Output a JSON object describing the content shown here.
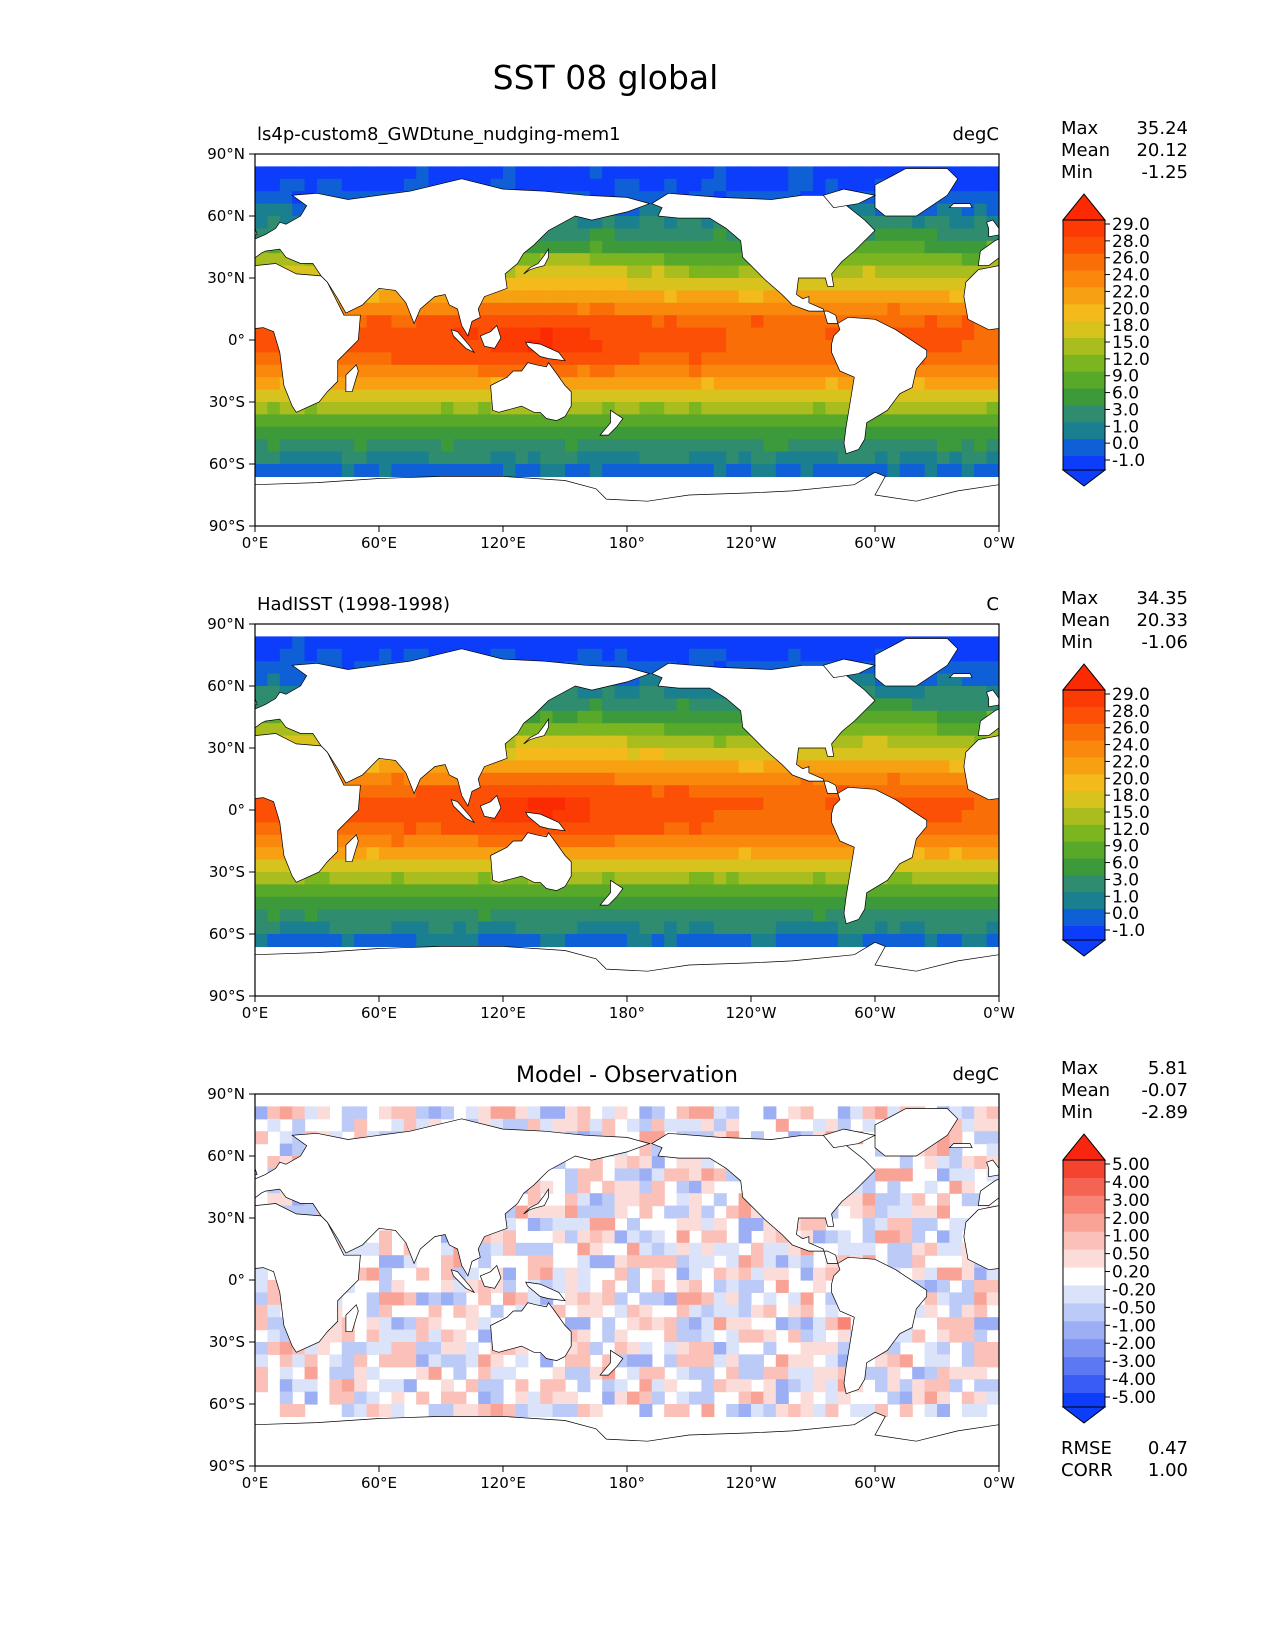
{
  "figure_title": "SST 08 global",
  "colors": {
    "land": "#ffffff",
    "coast": "#000000",
    "sst_scale": [
      "#0b3dfb",
      "#0f5fd6",
      "#1a7f8f",
      "#2f8c6e",
      "#3c9a3a",
      "#58a82a",
      "#7bb51f",
      "#a9bd1e",
      "#d8c21e",
      "#f4b91a",
      "#f7a012",
      "#f9880c",
      "#fa6e08",
      "#fb5006",
      "#fb3a04",
      "#fc2a02"
    ],
    "diff_scale": [
      "#0b3dfb",
      "#3a5cf6",
      "#5c78f3",
      "#7d94f2",
      "#9daff4",
      "#bccaf7",
      "#dae3fa",
      "#ffffff",
      "#ffffff",
      "#fcdcd8",
      "#fbc1b8",
      "#f9a396",
      "#f78474",
      "#f56352",
      "#f4432f",
      "#f8260f"
    ]
  },
  "chart_data": [
    {
      "type": "heatmap",
      "title": "ls4p-custom8_GWDtune_nudging-mem1",
      "units": "degC",
      "stats": [
        {
          "label": "Max",
          "value": "35.24"
        },
        {
          "label": "Mean",
          "value": "20.12"
        },
        {
          "label": "Min",
          "value": "-1.25"
        }
      ],
      "colorbar_ticks": [
        "29.0",
        "28.0",
        "26.0",
        "24.0",
        "22.0",
        "20.0",
        "18.0",
        "15.0",
        "12.0",
        "9.0",
        "6.0",
        "3.0",
        "1.0",
        "0.0",
        "-1.0"
      ],
      "xticks": [
        "0°E",
        "60°E",
        "120°E",
        "180°",
        "120°W",
        "60°W",
        "0°W"
      ],
      "yticks": [
        "90°N",
        "60°N",
        "30°N",
        "0°",
        "30°S",
        "60°S",
        "90°S"
      ],
      "xlim": [
        0,
        360
      ],
      "ylim": [
        -90,
        90
      ],
      "field": "sst_model"
    },
    {
      "type": "heatmap",
      "title": "HadISST (1998-1998)",
      "units": "C",
      "stats": [
        {
          "label": "Max",
          "value": "34.35"
        },
        {
          "label": "Mean",
          "value": "20.33"
        },
        {
          "label": "Min",
          "value": "-1.06"
        }
      ],
      "colorbar_ticks": [
        "29.0",
        "28.0",
        "26.0",
        "24.0",
        "22.0",
        "20.0",
        "18.0",
        "15.0",
        "12.0",
        "9.0",
        "6.0",
        "3.0",
        "1.0",
        "0.0",
        "-1.0"
      ],
      "xticks": [
        "0°E",
        "60°E",
        "120°E",
        "180°",
        "120°W",
        "60°W",
        "0°W"
      ],
      "yticks": [
        "90°N",
        "60°N",
        "30°N",
        "0°",
        "30°S",
        "60°S",
        "90°S"
      ],
      "xlim": [
        0,
        360
      ],
      "ylim": [
        -90,
        90
      ],
      "field": "sst_obs"
    },
    {
      "type": "heatmap",
      "title": "Model - Observation",
      "units": "degC",
      "stats": [
        {
          "label": "Max",
          "value": "5.81"
        },
        {
          "label": "Mean",
          "value": "-0.07"
        },
        {
          "label": "Min",
          "value": "-2.89"
        }
      ],
      "extra_stats": [
        {
          "label": "RMSE",
          "value": "0.47"
        },
        {
          "label": "CORR",
          "value": "1.00"
        }
      ],
      "colorbar_ticks": [
        "5.00",
        "4.00",
        "3.00",
        "2.00",
        "1.00",
        "0.50",
        "0.20",
        "-0.20",
        "-0.50",
        "-1.00",
        "-2.00",
        "-3.00",
        "-4.00",
        "-5.00"
      ],
      "xticks": [
        "0°E",
        "60°E",
        "120°E",
        "180°",
        "120°W",
        "60°W",
        "0°W"
      ],
      "yticks": [
        "90°N",
        "60°N",
        "30°N",
        "0°",
        "30°S",
        "60°S",
        "90°S"
      ],
      "xlim": [
        0,
        360
      ],
      "ylim": [
        -90,
        90
      ],
      "field": "sst_diff"
    }
  ]
}
